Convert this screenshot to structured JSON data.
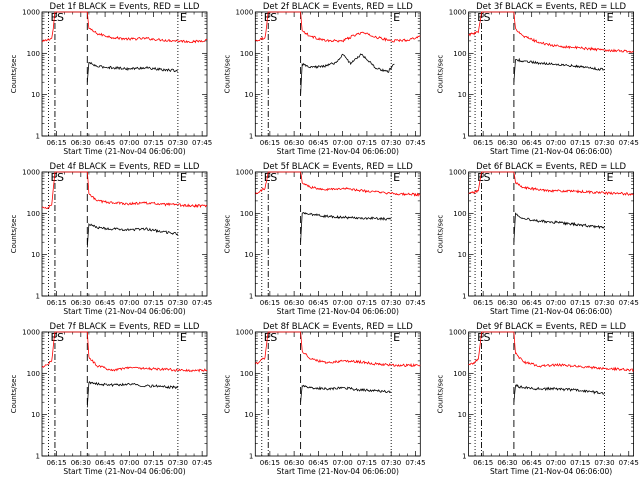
{
  "chart_data": [
    {
      "type": "line",
      "title": "Det  1f BLACK = Events, RED = LLD",
      "xlabel": "Start Time (21-Nov-04 06:06:00)",
      "ylabel": "Counts/sec",
      "x_tick_labels": [
        "06:15",
        "06:30",
        "06:45",
        "07:00",
        "07:15",
        "07:30",
        "07:45"
      ],
      "y_tick_labels": [
        "1",
        "10",
        "100",
        "1000"
      ],
      "y_scale": "log",
      "ylim": [
        1,
        1000
      ],
      "xlim": [
        "06:06",
        "07:48"
      ],
      "markers": [
        {
          "label": "E",
          "time": "06:10",
          "style": "dotted"
        },
        {
          "label": "S",
          "time": "06:14",
          "style": "dash-dot"
        },
        {
          "label": "",
          "time": "06:34",
          "style": "dashed"
        },
        {
          "label": "E",
          "time": "07:30",
          "style": "dotted"
        }
      ],
      "series": [
        {
          "name": "LLD",
          "color": "#ff0000",
          "x": [
            "06:06",
            "06:09",
            "06:12",
            "06:13",
            "06:14",
            "06:15",
            "06:34",
            "06:35",
            "06:40",
            "06:50",
            "07:00",
            "07:10",
            "07:20",
            "07:30",
            "07:40",
            "07:48"
          ],
          "y": [
            190,
            210,
            230,
            400,
            1000,
            1000,
            1000,
            400,
            300,
            240,
            220,
            230,
            210,
            200,
            190,
            210
          ]
        },
        {
          "name": "Events",
          "color": "#000000",
          "x": [
            "06:34",
            "06:35",
            "06:40",
            "06:50",
            "07:00",
            "07:10",
            "07:20",
            "07:30"
          ],
          "y": [
            20,
            60,
            48,
            45,
            42,
            45,
            40,
            38
          ]
        }
      ]
    },
    {
      "type": "line",
      "title": "Det  2f BLACK = Events, RED = LLD",
      "xlabel": "Start Time (21-Nov-04 06:06:00)",
      "ylabel": "Counts/sec",
      "x_tick_labels": [
        "06:15",
        "06:30",
        "06:45",
        "07:00",
        "07:15",
        "07:30",
        "07:45"
      ],
      "y_tick_labels": [
        "1",
        "10",
        "100",
        "1000"
      ],
      "y_scale": "log",
      "ylim": [
        1,
        1000
      ],
      "xlim": [
        "06:06",
        "07:48"
      ],
      "markers": [
        {
          "label": "E",
          "time": "06:10",
          "style": "dotted"
        },
        {
          "label": "S",
          "time": "06:14",
          "style": "dash-dot"
        },
        {
          "label": "",
          "time": "06:34",
          "style": "dashed"
        },
        {
          "label": "E",
          "time": "07:30",
          "style": "dotted"
        }
      ],
      "series": [
        {
          "name": "LLD",
          "color": "#ff0000",
          "x": [
            "06:06",
            "06:09",
            "06:12",
            "06:13",
            "06:14",
            "06:15",
            "06:34",
            "06:35",
            "06:40",
            "06:50",
            "07:00",
            "07:08",
            "07:12",
            "07:20",
            "07:30",
            "07:40",
            "07:48"
          ],
          "y": [
            200,
            220,
            240,
            450,
            1000,
            1000,
            1000,
            350,
            260,
            200,
            200,
            280,
            320,
            250,
            200,
            210,
            260
          ]
        },
        {
          "name": "Events",
          "color": "#000000",
          "x": [
            "06:34",
            "06:35",
            "06:40",
            "06:50",
            "06:56",
            "07:00",
            "07:05",
            "07:08",
            "07:12",
            "07:20",
            "07:28",
            "07:32"
          ],
          "y": [
            10,
            55,
            45,
            50,
            60,
            95,
            55,
            75,
            95,
            45,
            35,
            55
          ]
        }
      ]
    },
    {
      "type": "line",
      "title": "Det  3f BLACK = Events, RED = LLD",
      "xlabel": "Start Time (21-Nov-04 06:06:00)",
      "ylabel": "Counts/sec",
      "x_tick_labels": [
        "06:15",
        "06:30",
        "06:45",
        "07:00",
        "07:15",
        "07:30",
        "07:45"
      ],
      "y_tick_labels": [
        "1",
        "10",
        "100",
        "1000"
      ],
      "y_scale": "log",
      "ylim": [
        1,
        1000
      ],
      "xlim": [
        "06:06",
        "07:48"
      ],
      "markers": [
        {
          "label": "E",
          "time": "06:10",
          "style": "dotted"
        },
        {
          "label": "S",
          "time": "06:14",
          "style": "dash-dot"
        },
        {
          "label": "",
          "time": "06:34",
          "style": "dashed"
        },
        {
          "label": "E",
          "time": "07:30",
          "style": "dotted"
        }
      ],
      "series": [
        {
          "name": "LLD",
          "color": "#ff0000",
          "x": [
            "06:06",
            "06:09",
            "06:12",
            "06:13",
            "06:14",
            "06:15",
            "06:34",
            "06:35",
            "06:40",
            "06:50",
            "07:00",
            "07:10",
            "07:20",
            "07:30",
            "07:40",
            "07:48"
          ],
          "y": [
            280,
            300,
            320,
            550,
            1000,
            1000,
            1000,
            400,
            260,
            180,
            150,
            140,
            130,
            120,
            115,
            110
          ]
        },
        {
          "name": "Events",
          "color": "#000000",
          "x": [
            "06:34",
            "06:35",
            "06:40",
            "06:50",
            "07:00",
            "07:10",
            "07:20",
            "07:30"
          ],
          "y": [
            20,
            70,
            65,
            58,
            55,
            50,
            45,
            40
          ]
        }
      ]
    },
    {
      "type": "line",
      "title": "Det  4f BLACK = Events, RED = LLD",
      "xlabel": "Start Time (21-Nov-04 06:06:00)",
      "ylabel": "Counts/sec",
      "x_tick_labels": [
        "06:15",
        "06:30",
        "06:45",
        "07:00",
        "07:15",
        "07:30",
        "07:45"
      ],
      "y_tick_labels": [
        "1",
        "10",
        "100",
        "1000"
      ],
      "y_scale": "log",
      "ylim": [
        1,
        1000
      ],
      "xlim": [
        "06:06",
        "07:48"
      ],
      "markers": [
        {
          "label": "E",
          "time": "06:10",
          "style": "dotted"
        },
        {
          "label": "S",
          "time": "06:14",
          "style": "dash-dot"
        },
        {
          "label": "",
          "time": "06:34",
          "style": "dashed"
        },
        {
          "label": "E",
          "time": "07:30",
          "style": "dotted"
        }
      ],
      "series": [
        {
          "name": "LLD",
          "color": "#ff0000",
          "x": [
            "06:06",
            "06:09",
            "06:12",
            "06:13",
            "06:14",
            "06:15",
            "06:34",
            "06:35",
            "06:40",
            "06:50",
            "07:00",
            "07:10",
            "07:20",
            "07:30",
            "07:40",
            "07:48"
          ],
          "y": [
            140,
            130,
            160,
            400,
            1000,
            1000,
            1000,
            300,
            200,
            180,
            170,
            180,
            165,
            160,
            150,
            155
          ]
        },
        {
          "name": "Events",
          "color": "#000000",
          "x": [
            "06:34",
            "06:35",
            "06:40",
            "06:50",
            "07:00",
            "07:10",
            "07:20",
            "07:30"
          ],
          "y": [
            15,
            55,
            45,
            42,
            40,
            42,
            36,
            32
          ]
        }
      ]
    },
    {
      "type": "line",
      "title": "Det  5f BLACK = Events, RED = LLD",
      "xlabel": "Start Time (21-Nov-04 06:06:00)",
      "ylabel": "Counts/sec",
      "x_tick_labels": [
        "06:15",
        "06:30",
        "06:45",
        "07:00",
        "07:15",
        "07:30",
        "07:45"
      ],
      "y_tick_labels": [
        "1",
        "10",
        "100",
        "1000"
      ],
      "y_scale": "log",
      "ylim": [
        1,
        1000
      ],
      "xlim": [
        "06:06",
        "07:48"
      ],
      "markers": [
        {
          "label": "E",
          "time": "06:10",
          "style": "dotted"
        },
        {
          "label": "S",
          "time": "06:14",
          "style": "dash-dot"
        },
        {
          "label": "",
          "time": "06:34",
          "style": "dashed"
        },
        {
          "label": "E",
          "time": "07:30",
          "style": "dotted"
        }
      ],
      "series": [
        {
          "name": "LLD",
          "color": "#ff0000",
          "x": [
            "06:06",
            "06:09",
            "06:12",
            "06:13",
            "06:14",
            "06:15",
            "06:34",
            "06:35",
            "06:40",
            "06:50",
            "07:00",
            "07:10",
            "07:20",
            "07:30",
            "07:40",
            "07:48"
          ],
          "y": [
            300,
            350,
            400,
            600,
            1000,
            1000,
            1000,
            550,
            430,
            380,
            400,
            360,
            330,
            300,
            290,
            280
          ]
        },
        {
          "name": "Events",
          "color": "#000000",
          "x": [
            "06:34",
            "06:35",
            "06:40",
            "06:50",
            "07:00",
            "07:10",
            "07:20",
            "07:30"
          ],
          "y": [
            20,
            100,
            95,
            85,
            80,
            78,
            75,
            72
          ]
        }
      ]
    },
    {
      "type": "line",
      "title": "Det  6f BLACK = Events, RED = LLD",
      "xlabel": "Start Time (21-Nov-04 06:06:00)",
      "ylabel": "Counts/sec",
      "x_tick_labels": [
        "06:15",
        "06:30",
        "06:45",
        "07:00",
        "07:15",
        "07:30",
        "07:45"
      ],
      "y_tick_labels": [
        "1",
        "10",
        "100",
        "1000"
      ],
      "y_scale": "log",
      "ylim": [
        1,
        1000
      ],
      "xlim": [
        "06:06",
        "07:48"
      ],
      "markers": [
        {
          "label": "E",
          "time": "06:10",
          "style": "dotted"
        },
        {
          "label": "S",
          "time": "06:14",
          "style": "dash-dot"
        },
        {
          "label": "",
          "time": "06:34",
          "style": "dashed"
        },
        {
          "label": "E",
          "time": "07:30",
          "style": "dotted"
        }
      ],
      "series": [
        {
          "name": "LLD",
          "color": "#ff0000",
          "x": [
            "06:06",
            "06:09",
            "06:12",
            "06:13",
            "06:14",
            "06:15",
            "06:34",
            "06:35",
            "06:40",
            "06:50",
            "07:00",
            "07:10",
            "07:20",
            "07:30",
            "07:40",
            "07:48"
          ],
          "y": [
            300,
            320,
            350,
            600,
            1000,
            1000,
            1000,
            550,
            420,
            370,
            350,
            340,
            330,
            310,
            300,
            290
          ]
        },
        {
          "name": "Events",
          "color": "#000000",
          "x": [
            "06:34",
            "06:35",
            "06:40",
            "06:50",
            "07:00",
            "07:10",
            "07:20",
            "07:30"
          ],
          "y": [
            20,
            100,
            75,
            65,
            60,
            55,
            50,
            45
          ]
        }
      ]
    },
    {
      "type": "line",
      "title": "Det  7f BLACK = Events, RED = LLD",
      "xlabel": "Start Time (21-Nov-04 06:06:00)",
      "ylabel": "Counts/sec",
      "x_tick_labels": [
        "06:15",
        "06:30",
        "06:45",
        "07:00",
        "07:15",
        "07:30",
        "07:45"
      ],
      "y_tick_labels": [
        "1",
        "10",
        "100",
        "1000"
      ],
      "y_scale": "log",
      "ylim": [
        1,
        1000
      ],
      "xlim": [
        "06:06",
        "07:48"
      ],
      "markers": [
        {
          "label": "E",
          "time": "06:10",
          "style": "dotted"
        },
        {
          "label": "S",
          "time": "06:14",
          "style": "dash-dot"
        },
        {
          "label": "",
          "time": "06:34",
          "style": "dashed"
        },
        {
          "label": "E",
          "time": "07:30",
          "style": "dotted"
        }
      ],
      "series": [
        {
          "name": "LLD",
          "color": "#ff0000",
          "x": [
            "06:06",
            "06:09",
            "06:12",
            "06:13",
            "06:14",
            "06:15",
            "06:34",
            "06:35",
            "06:40",
            "06:50",
            "07:00",
            "07:10",
            "07:20",
            "07:30",
            "07:40",
            "07:48"
          ],
          "y": [
            140,
            160,
            200,
            450,
            1000,
            1000,
            1000,
            250,
            150,
            120,
            140,
            130,
            125,
            120,
            115,
            120
          ]
        },
        {
          "name": "Events",
          "color": "#000000",
          "x": [
            "06:34",
            "06:35",
            "06:40",
            "06:50",
            "07:00",
            "07:10",
            "07:20",
            "07:30"
          ],
          "y": [
            15,
            60,
            55,
            52,
            55,
            50,
            48,
            45
          ]
        }
      ]
    },
    {
      "type": "line",
      "title": "Det  8f BLACK = Events, RED = LLD",
      "xlabel": "Start Time (21-Nov-04 06:06:00)",
      "ylabel": "Counts/sec",
      "x_tick_labels": [
        "06:15",
        "06:30",
        "06:45",
        "07:00",
        "07:15",
        "07:30",
        "07:45"
      ],
      "y_tick_labels": [
        "1",
        "10",
        "100",
        "1000"
      ],
      "y_scale": "log",
      "ylim": [
        1,
        1000
      ],
      "xlim": [
        "06:06",
        "07:48"
      ],
      "markers": [
        {
          "label": "E",
          "time": "06:10",
          "style": "dotted"
        },
        {
          "label": "S",
          "time": "06:14",
          "style": "dash-dot"
        },
        {
          "label": "",
          "time": "06:34",
          "style": "dashed"
        },
        {
          "label": "E",
          "time": "07:30",
          "style": "dotted"
        }
      ],
      "series": [
        {
          "name": "LLD",
          "color": "#ff0000",
          "x": [
            "06:06",
            "06:09",
            "06:12",
            "06:13",
            "06:14",
            "06:15",
            "06:34",
            "06:35",
            "06:40",
            "06:50",
            "07:00",
            "07:10",
            "07:20",
            "07:30",
            "07:40",
            "07:48"
          ],
          "y": [
            170,
            200,
            240,
            500,
            1000,
            1000,
            1000,
            350,
            220,
            180,
            200,
            190,
            170,
            160,
            155,
            160
          ]
        },
        {
          "name": "Events",
          "color": "#000000",
          "x": [
            "06:34",
            "06:35",
            "06:40",
            "06:50",
            "07:00",
            "07:10",
            "07:20",
            "07:30"
          ],
          "y": [
            20,
            50,
            45,
            42,
            45,
            40,
            38,
            35
          ]
        }
      ]
    },
    {
      "type": "line",
      "title": "Det  9f BLACK = Events, RED = LLD",
      "xlabel": "Start Time (21-Nov-04 06:06:00)",
      "ylabel": "Counts/sec",
      "x_tick_labels": [
        "06:15",
        "06:30",
        "06:45",
        "07:00",
        "07:15",
        "07:30",
        "07:45"
      ],
      "y_tick_labels": [
        "1",
        "10",
        "100",
        "1000"
      ],
      "y_scale": "log",
      "ylim": [
        1,
        1000
      ],
      "xlim": [
        "06:06",
        "07:48"
      ],
      "markers": [
        {
          "label": "E",
          "time": "06:10",
          "style": "dotted"
        },
        {
          "label": "S",
          "time": "06:14",
          "style": "dash-dot"
        },
        {
          "label": "",
          "time": "06:34",
          "style": "dashed"
        },
        {
          "label": "E",
          "time": "07:30",
          "style": "dotted"
        }
      ],
      "series": [
        {
          "name": "LLD",
          "color": "#ff0000",
          "x": [
            "06:06",
            "06:09",
            "06:12",
            "06:13",
            "06:14",
            "06:15",
            "06:34",
            "06:35",
            "06:40",
            "06:50",
            "07:00",
            "07:10",
            "07:20",
            "07:30",
            "07:40",
            "07:48"
          ],
          "y": [
            160,
            180,
            220,
            450,
            1000,
            1000,
            1000,
            300,
            190,
            150,
            160,
            150,
            140,
            130,
            125,
            120
          ]
        },
        {
          "name": "Events",
          "color": "#000000",
          "x": [
            "06:34",
            "06:35",
            "06:40",
            "06:50",
            "07:00",
            "07:10",
            "07:20",
            "07:30"
          ],
          "y": [
            20,
            50,
            45,
            42,
            42,
            40,
            36,
            33
          ]
        }
      ]
    }
  ]
}
